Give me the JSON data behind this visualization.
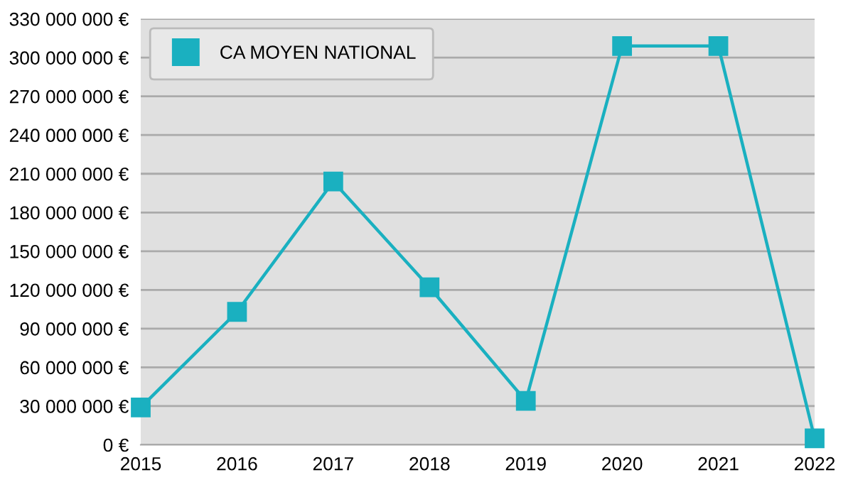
{
  "chart_data": {
    "type": "line",
    "categories": [
      "2015",
      "2016",
      "2017",
      "2018",
      "2019",
      "2020",
      "2021",
      "2022"
    ],
    "series": [
      {
        "name": "CA MOYEN NATIONAL",
        "color": "#1ab0c0",
        "values": [
          29000000,
          103000000,
          204000000,
          122000000,
          34000000,
          309000000,
          309000000,
          5000000
        ]
      }
    ],
    "ylim": [
      0,
      330000000
    ],
    "yticks": [
      {
        "value": 0,
        "label": "0 €"
      },
      {
        "value": 30000000,
        "label": "30 000 000 €"
      },
      {
        "value": 60000000,
        "label": "60 000 000 €"
      },
      {
        "value": 90000000,
        "label": "90 000 000 €"
      },
      {
        "value": 120000000,
        "label": "120 000 000 €"
      },
      {
        "value": 150000000,
        "label": "150 000 000 €"
      },
      {
        "value": 180000000,
        "label": "180 000 000 €"
      },
      {
        "value": 210000000,
        "label": "210 000 000 €"
      },
      {
        "value": 240000000,
        "label": "240 000 000 €"
      },
      {
        "value": 270000000,
        "label": "270 000 000 €"
      },
      {
        "value": 300000000,
        "label": "300 000 000 €"
      },
      {
        "value": 330000000,
        "label": "330 000 000 €"
      }
    ],
    "grid": "y",
    "legend": "top left",
    "marker": "square",
    "line_style": "solid"
  }
}
